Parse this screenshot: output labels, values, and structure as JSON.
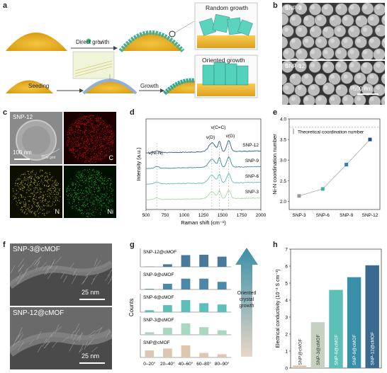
{
  "panel_a": {
    "letter": "a",
    "direct_growth": "Direct growth",
    "random_growth": "Random growth",
    "seeding": "Seeding",
    "growth": "Growth",
    "oriented_growth": "Oriented growth"
  },
  "panel_b": {
    "letter": "b",
    "top_label": "SNP-3",
    "bottom_label": "SNP-12",
    "scale": "500 nm"
  },
  "panel_c": {
    "letter": "c",
    "label": "SNP-12",
    "scale": "100 nm",
    "tem_grid": "TEM grid",
    "maps": [
      "C",
      "N",
      "Ni"
    ],
    "map_colors": [
      "#c81010",
      "#c8c810",
      "#20c020"
    ]
  },
  "panel_d": {
    "letter": "d",
    "chart_data": {
      "type": "line",
      "xlabel": "Raman shift (cm⁻¹)",
      "ylabel": "Intensity (a.u.)",
      "xlim": [
        500,
        2000
      ],
      "x_ticks": [
        "500",
        "750",
        "1000",
        "1250",
        "1500",
        "1750",
        "2000"
      ],
      "peak_labels": [
        "v(Ni-N)",
        "v(D)",
        "v(C=C)",
        "v(G)"
      ],
      "peak_positions": [
        640,
        1360,
        1460,
        1580
      ],
      "series": [
        {
          "name": "SNP-12",
          "color": "#2f5f8f",
          "offset": 3
        },
        {
          "name": "SNP-9",
          "color": "#3a8fa8",
          "offset": 2
        },
        {
          "name": "SNP-6",
          "color": "#5cc0b0",
          "offset": 1
        },
        {
          "name": "SNP-3",
          "color": "#a8d8a8",
          "offset": 0
        }
      ]
    }
  },
  "panel_e": {
    "letter": "e",
    "chart_data": {
      "type": "scatter",
      "ylabel": "Ni-N coordination number",
      "categories": [
        "SNP-3",
        "SNP-6",
        "SNP-9",
        "SNP-12"
      ],
      "values": [
        2.13,
        2.3,
        2.89,
        3.5
      ],
      "ylim": [
        1.8,
        4.0
      ],
      "y_ticks": [
        "2.0",
        "2.5",
        "3.0",
        "3.5",
        "4.0"
      ],
      "reference_line": 3.8,
      "reference_label": "Theoretical coordination number",
      "colors": [
        "#999999",
        "#3ab0a8",
        "#2a7fb0",
        "#1a4f8f"
      ]
    }
  },
  "panel_f": {
    "letter": "f",
    "top_label": "SNP-3@cMOF",
    "bottom_label": "SNP-12@cMOF",
    "scale_top": "25 nm",
    "scale_bottom": "25 nm"
  },
  "panel_g": {
    "letter": "g",
    "chart_data": {
      "type": "bar",
      "ylabel": "Counts",
      "categories": [
        "0–20°",
        "20–40°",
        "40–60°",
        "60–80°",
        "80–90°"
      ],
      "series": [
        {
          "name": "SNP-12@cMOF",
          "color": "#4a7a9a",
          "values": [
            0.02,
            0.2,
            0.92,
            0.95,
            0.8
          ]
        },
        {
          "name": "SNP-9@cMOF",
          "color": "#4a8aa8",
          "values": [
            0.05,
            0.45,
            0.85,
            0.85,
            0.6
          ]
        },
        {
          "name": "SNP-6@cMOF",
          "color": "#5cc0b8",
          "values": [
            0.15,
            0.55,
            0.95,
            0.7,
            0.6
          ]
        },
        {
          "name": "SNP-3@cMOF",
          "color": "#a8d8c0",
          "values": [
            0.2,
            0.55,
            0.9,
            0.6,
            0.35
          ]
        },
        {
          "name": "SNP@cMOF",
          "color": "#dcc8b0",
          "values": [
            0.55,
            0.7,
            0.95,
            0.35,
            0.25
          ]
        }
      ],
      "arrow_label": [
        "Oriented",
        "crystal",
        "growth"
      ]
    }
  },
  "panel_h": {
    "letter": "h",
    "chart_data": {
      "type": "bar",
      "ylabel": "Electrical conductivity (10⁻³ S cm⁻¹)",
      "categories": [
        "SNP@cMOF",
        "SNP-3@cMOF",
        "SNP-6@cMOF",
        "SNP-9@cMOF",
        "SNP-12@cMOF"
      ],
      "values": [
        0.15,
        2.7,
        4.6,
        5.35,
        6.05
      ],
      "ylim": [
        0,
        7
      ],
      "y_ticks": [
        "0",
        "1",
        "2",
        "3",
        "4",
        "5",
        "6",
        "7"
      ],
      "colors": [
        "#dcc8b0",
        "#c8d0c0",
        "#5cc0b8",
        "#3a8fa8",
        "#3a6a90"
      ]
    }
  }
}
